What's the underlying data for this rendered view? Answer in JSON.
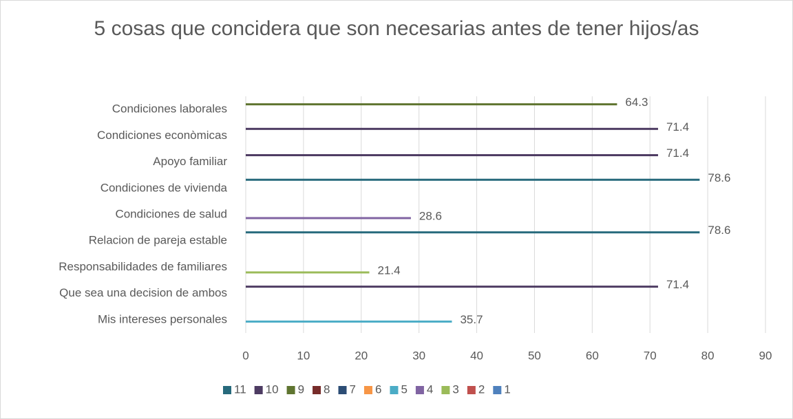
{
  "chart_data": {
    "type": "bar",
    "orientation": "horizontal",
    "title": "5 cosas que concidera que son necesarias antes de tener hijos/as",
    "categories": [
      "Condiciones laborales",
      "Condiciones econòmicas",
      "Apoyo familiar",
      "Condiciones de vivienda",
      "Condiciones de salud",
      "Relacion de pareja estable",
      "Responsabilidades de familiares",
      "Que sea una decision de ambos",
      "Mis intereses personales"
    ],
    "series": [
      {
        "name": "1",
        "color": "#4f81bd",
        "values": [
          null,
          null,
          null,
          null,
          null,
          null,
          null,
          null,
          null
        ]
      },
      {
        "name": "2",
        "color": "#c0504d",
        "values": [
          null,
          null,
          null,
          null,
          null,
          null,
          null,
          null,
          null
        ]
      },
      {
        "name": "3",
        "color": "#9bbb59",
        "values": [
          null,
          null,
          null,
          null,
          null,
          null,
          21.4,
          null,
          null
        ]
      },
      {
        "name": "4",
        "color": "#8064a2",
        "values": [
          null,
          null,
          null,
          null,
          28.6,
          null,
          null,
          null,
          null
        ]
      },
      {
        "name": "5",
        "color": "#4bacc6",
        "values": [
          null,
          null,
          null,
          null,
          null,
          null,
          null,
          null,
          35.7
        ]
      },
      {
        "name": "6",
        "color": "#f79646",
        "values": [
          null,
          null,
          null,
          null,
          null,
          null,
          null,
          null,
          null
        ]
      },
      {
        "name": "7",
        "color": "#2c4d75",
        "values": [
          null,
          null,
          null,
          null,
          null,
          null,
          null,
          null,
          null
        ]
      },
      {
        "name": "8",
        "color": "#772c2a",
        "values": [
          null,
          null,
          null,
          null,
          null,
          null,
          null,
          null,
          null
        ]
      },
      {
        "name": "9",
        "color": "#5f7530",
        "values": [
          64.3,
          null,
          null,
          null,
          null,
          null,
          null,
          null,
          null
        ]
      },
      {
        "name": "10",
        "color": "#4d3b62",
        "values": [
          null,
          71.4,
          71.4,
          null,
          null,
          null,
          null,
          71.4,
          null
        ]
      },
      {
        "name": "11",
        "color": "#276a7c",
        "values": [
          null,
          null,
          null,
          78.6,
          null,
          78.6,
          null,
          null,
          null
        ]
      }
    ],
    "xlim": [
      0,
      90
    ],
    "xticks": [
      0,
      10,
      20,
      30,
      40,
      50,
      60,
      70,
      80,
      90
    ],
    "grid": true,
    "legend": "bottom"
  }
}
